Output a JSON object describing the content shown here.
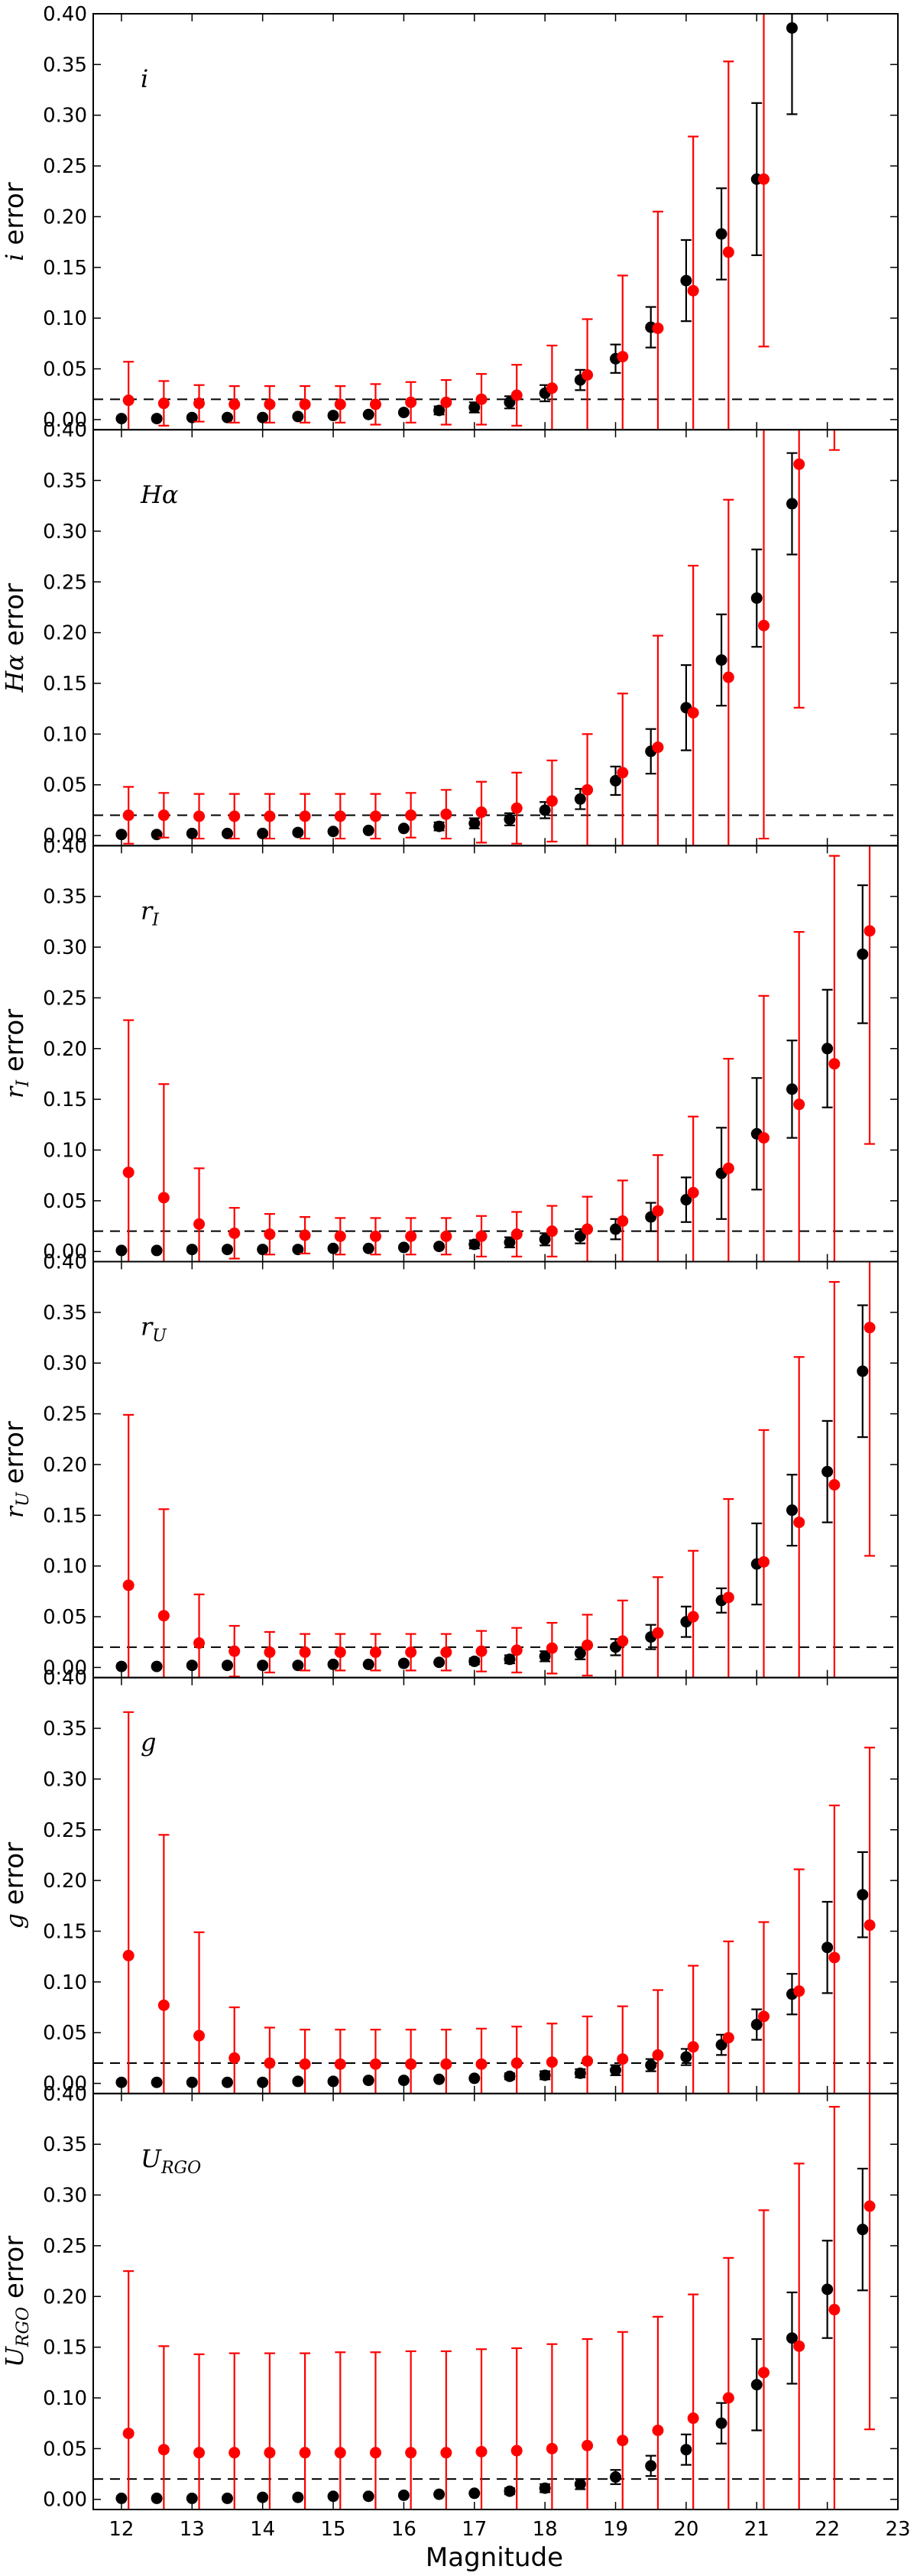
{
  "figure": {
    "xlabel": "Magnitude",
    "x_ticks": [
      12,
      13,
      14,
      15,
      16,
      17,
      18,
      19,
      20,
      21,
      22,
      23
    ],
    "xlim": [
      11.6,
      23.0
    ],
    "ylim": [
      -0.01,
      0.4
    ],
    "y_ticks": [
      "0.00",
      "0.05",
      "0.10",
      "0.15",
      "0.20",
      "0.25",
      "0.30",
      "0.35",
      "0.40"
    ],
    "ylabel_suffix": "error",
    "reference_line": 0.02,
    "colors": {
      "black_series": "#000000",
      "red_series": "#ff0000",
      "reference": "#000000"
    }
  },
  "chart_data": [
    {
      "type": "scatter",
      "band": {
        "main": "i",
        "sub": ""
      },
      "series": [
        {
          "color": "#000000",
          "x": [
            12,
            12.5,
            13,
            13.5,
            14,
            14.5,
            15,
            15.5,
            16,
            16.5,
            17,
            17.5,
            18,
            18.5,
            19,
            19.5,
            20,
            20.5,
            21,
            21.5
          ],
          "y": [
            0.001,
            0.001,
            0.002,
            0.002,
            0.002,
            0.003,
            0.004,
            0.005,
            0.007,
            0.009,
            0.012,
            0.017,
            0.026,
            0.039,
            0.06,
            0.091,
            0.137,
            0.183,
            0.237,
            0.386
          ],
          "err": [
            0,
            0,
            0,
            0,
            0,
            0,
            0,
            0,
            0,
            0.004,
            0.005,
            0.006,
            0.008,
            0.01,
            0.014,
            0.02,
            0.04,
            0.045,
            0.075,
            0.085
          ]
        },
        {
          "color": "#ff0000",
          "x": [
            12.1,
            12.6,
            13.1,
            13.6,
            14.1,
            14.6,
            15.1,
            15.6,
            16.1,
            16.6,
            17.1,
            17.6,
            18.1,
            18.6,
            19.1,
            19.6,
            20.1,
            20.6,
            21.1
          ],
          "y": [
            0.019,
            0.016,
            0.016,
            0.015,
            0.015,
            0.015,
            0.015,
            0.015,
            0.017,
            0.017,
            0.02,
            0.024,
            0.031,
            0.044,
            0.062,
            0.09,
            0.127,
            0.165,
            0.237
          ],
          "err": [
            0.038,
            0.022,
            0.018,
            0.018,
            0.018,
            0.018,
            0.018,
            0.02,
            0.02,
            0.022,
            0.025,
            0.03,
            0.042,
            0.055,
            0.08,
            0.115,
            0.152,
            0.188,
            0.165
          ]
        }
      ]
    },
    {
      "type": "scatter",
      "band": {
        "main": "Hα",
        "sub": ""
      },
      "series": [
        {
          "color": "#000000",
          "x": [
            12,
            12.5,
            13,
            13.5,
            14,
            14.5,
            15,
            15.5,
            16,
            16.5,
            17,
            17.5,
            18,
            18.5,
            19,
            19.5,
            20,
            20.5,
            21,
            21.5
          ],
          "y": [
            0.001,
            0.001,
            0.002,
            0.002,
            0.002,
            0.003,
            0.004,
            0.005,
            0.007,
            0.009,
            0.012,
            0.016,
            0.025,
            0.036,
            0.054,
            0.083,
            0.126,
            0.173,
            0.234,
            0.327
          ],
          "err": [
            0,
            0,
            0,
            0,
            0,
            0,
            0,
            0,
            0,
            0.004,
            0.005,
            0.006,
            0.008,
            0.01,
            0.014,
            0.022,
            0.042,
            0.045,
            0.048,
            0.05
          ]
        },
        {
          "color": "#ff0000",
          "x": [
            12.1,
            12.6,
            13.1,
            13.6,
            14.1,
            14.6,
            15.1,
            15.6,
            16.1,
            16.6,
            17.1,
            17.6,
            18.1,
            18.6,
            19.1,
            19.6,
            20.1,
            20.6,
            21.1,
            21.6,
            22.1
          ],
          "y": [
            0.02,
            0.02,
            0.019,
            0.019,
            0.019,
            0.019,
            0.019,
            0.019,
            0.02,
            0.021,
            0.023,
            0.027,
            0.034,
            0.045,
            0.062,
            0.087,
            0.121,
            0.156,
            0.207,
            0.366,
            0.45
          ],
          "err": [
            0.028,
            0.022,
            0.022,
            0.022,
            0.022,
            0.022,
            0.022,
            0.022,
            0.022,
            0.024,
            0.03,
            0.035,
            0.04,
            0.055,
            0.078,
            0.11,
            0.145,
            0.175,
            0.21,
            0.24,
            0.07
          ]
        }
      ]
    },
    {
      "type": "scatter",
      "band": {
        "main": "r",
        "sub": "I"
      },
      "series": [
        {
          "color": "#000000",
          "x": [
            12,
            12.5,
            13,
            13.5,
            14,
            14.5,
            15,
            15.5,
            16,
            16.5,
            17,
            17.5,
            18,
            18.5,
            19,
            19.5,
            20,
            20.5,
            21,
            21.5,
            22,
            22.5
          ],
          "y": [
            0.001,
            0.001,
            0.002,
            0.002,
            0.002,
            0.002,
            0.003,
            0.003,
            0.004,
            0.005,
            0.007,
            0.009,
            0.012,
            0.015,
            0.022,
            0.034,
            0.051,
            0.077,
            0.116,
            0.16,
            0.2,
            0.293
          ],
          "err": [
            0,
            0,
            0,
            0,
            0,
            0,
            0,
            0,
            0,
            0,
            0.004,
            0.005,
            0.006,
            0.007,
            0.01,
            0.014,
            0.022,
            0.045,
            0.055,
            0.048,
            0.058,
            0.068
          ]
        },
        {
          "color": "#ff0000",
          "x": [
            12.1,
            12.6,
            13.1,
            13.6,
            14.1,
            14.6,
            15.1,
            15.6,
            16.1,
            16.6,
            17.1,
            17.6,
            18.1,
            18.6,
            19.1,
            19.6,
            20.1,
            20.6,
            21.1,
            21.6,
            22.1,
            22.6
          ],
          "y": [
            0.078,
            0.053,
            0.027,
            0.018,
            0.017,
            0.016,
            0.015,
            0.015,
            0.015,
            0.015,
            0.015,
            0.017,
            0.02,
            0.022,
            0.03,
            0.04,
            0.058,
            0.082,
            0.112,
            0.145,
            0.185,
            0.316
          ],
          "err": [
            0.15,
            0.112,
            0.055,
            0.025,
            0.02,
            0.018,
            0.018,
            0.018,
            0.018,
            0.018,
            0.02,
            0.022,
            0.025,
            0.032,
            0.04,
            0.055,
            0.075,
            0.108,
            0.14,
            0.17,
            0.205,
            0.21
          ]
        }
      ]
    },
    {
      "type": "scatter",
      "band": {
        "main": "r",
        "sub": "U"
      },
      "series": [
        {
          "color": "#000000",
          "x": [
            12,
            12.5,
            13,
            13.5,
            14,
            14.5,
            15,
            15.5,
            16,
            16.5,
            17,
            17.5,
            18,
            18.5,
            19,
            19.5,
            20,
            20.5,
            21,
            21.5,
            22,
            22.5
          ],
          "y": [
            0.001,
            0.001,
            0.002,
            0.002,
            0.002,
            0.002,
            0.003,
            0.003,
            0.004,
            0.005,
            0.006,
            0.008,
            0.011,
            0.014,
            0.02,
            0.03,
            0.045,
            0.066,
            0.102,
            0.155,
            0.193,
            0.292
          ],
          "err": [
            0,
            0,
            0,
            0,
            0,
            0,
            0,
            0,
            0,
            0,
            0.003,
            0.004,
            0.005,
            0.006,
            0.008,
            0.012,
            0.015,
            0.012,
            0.04,
            0.035,
            0.05,
            0.065
          ]
        },
        {
          "color": "#ff0000",
          "x": [
            12.1,
            12.6,
            13.1,
            13.6,
            14.1,
            14.6,
            15.1,
            15.6,
            16.1,
            16.6,
            17.1,
            17.6,
            18.1,
            18.6,
            19.1,
            19.6,
            20.1,
            20.6,
            21.1,
            21.6,
            22.1,
            22.6
          ],
          "y": [
            0.081,
            0.051,
            0.024,
            0.016,
            0.015,
            0.015,
            0.015,
            0.015,
            0.015,
            0.015,
            0.016,
            0.017,
            0.019,
            0.022,
            0.026,
            0.034,
            0.05,
            0.069,
            0.104,
            0.143,
            0.18,
            0.335
          ],
          "err": [
            0.168,
            0.105,
            0.048,
            0.025,
            0.02,
            0.018,
            0.018,
            0.018,
            0.018,
            0.018,
            0.02,
            0.022,
            0.025,
            0.03,
            0.04,
            0.055,
            0.065,
            0.097,
            0.13,
            0.163,
            0.2,
            0.225
          ]
        }
      ]
    },
    {
      "type": "scatter",
      "band": {
        "main": "g",
        "sub": ""
      },
      "series": [
        {
          "color": "#000000",
          "x": [
            12,
            12.5,
            13,
            13.5,
            14,
            14.5,
            15,
            15.5,
            16,
            16.5,
            17,
            17.5,
            18,
            18.5,
            19,
            19.5,
            20,
            20.5,
            21,
            21.5,
            22,
            22.5
          ],
          "y": [
            0.001,
            0.001,
            0.001,
            0.001,
            0.001,
            0.002,
            0.002,
            0.003,
            0.003,
            0.004,
            0.005,
            0.007,
            0.008,
            0.01,
            0.013,
            0.018,
            0.026,
            0.038,
            0.058,
            0.088,
            0.134,
            0.186
          ],
          "err": [
            0,
            0,
            0,
            0,
            0,
            0,
            0,
            0,
            0,
            0,
            0,
            0.003,
            0.004,
            0.004,
            0.005,
            0.006,
            0.008,
            0.01,
            0.015,
            0.02,
            0.045,
            0.042
          ]
        },
        {
          "color": "#ff0000",
          "x": [
            12.1,
            12.6,
            13.1,
            13.6,
            14.1,
            14.6,
            15.1,
            15.6,
            16.1,
            16.6,
            17.1,
            17.6,
            18.1,
            18.6,
            19.1,
            19.6,
            20.1,
            20.6,
            21.1,
            21.6,
            22.1,
            22.6
          ],
          "y": [
            0.126,
            0.077,
            0.047,
            0.025,
            0.02,
            0.019,
            0.019,
            0.019,
            0.019,
            0.019,
            0.019,
            0.02,
            0.021,
            0.022,
            0.024,
            0.028,
            0.036,
            0.045,
            0.066,
            0.091,
            0.124,
            0.156
          ],
          "err": [
            0.24,
            0.168,
            0.102,
            0.05,
            0.035,
            0.034,
            0.034,
            0.034,
            0.034,
            0.034,
            0.035,
            0.036,
            0.038,
            0.044,
            0.052,
            0.064,
            0.08,
            0.095,
            0.093,
            0.12,
            0.15,
            0.175
          ]
        }
      ]
    },
    {
      "type": "scatter",
      "band": {
        "main": "U",
        "sub": "RGO"
      },
      "series": [
        {
          "color": "#000000",
          "x": [
            12,
            12.5,
            13,
            13.5,
            14,
            14.5,
            15,
            15.5,
            16,
            16.5,
            17,
            17.5,
            18,
            18.5,
            19,
            19.5,
            20,
            20.5,
            21,
            21.5,
            22,
            22.5
          ],
          "y": [
            0.001,
            0.001,
            0.001,
            0.001,
            0.002,
            0.002,
            0.003,
            0.003,
            0.004,
            0.005,
            0.006,
            0.008,
            0.011,
            0.015,
            0.022,
            0.033,
            0.049,
            0.075,
            0.113,
            0.159,
            0.207,
            0.266
          ],
          "err": [
            0,
            0,
            0,
            0,
            0,
            0,
            0,
            0,
            0,
            0,
            0,
            0.003,
            0.004,
            0.005,
            0.007,
            0.01,
            0.015,
            0.02,
            0.045,
            0.045,
            0.048,
            0.06
          ]
        },
        {
          "color": "#ff0000",
          "x": [
            12.1,
            12.6,
            13.1,
            13.6,
            14.1,
            14.6,
            15.1,
            15.6,
            16.1,
            16.6,
            17.1,
            17.6,
            18.1,
            18.6,
            19.1,
            19.6,
            20.1,
            20.6,
            21.1,
            21.6,
            22.1,
            22.6
          ],
          "y": [
            0.065,
            0.049,
            0.046,
            0.046,
            0.046,
            0.046,
            0.046,
            0.046,
            0.046,
            0.046,
            0.047,
            0.048,
            0.05,
            0.053,
            0.058,
            0.068,
            0.08,
            0.1,
            0.125,
            0.151,
            0.187,
            0.289
          ],
          "err": [
            0.16,
            0.102,
            0.097,
            0.098,
            0.098,
            0.098,
            0.099,
            0.099,
            0.1,
            0.1,
            0.101,
            0.101,
            0.103,
            0.105,
            0.107,
            0.112,
            0.122,
            0.138,
            0.16,
            0.18,
            0.2,
            0.22
          ]
        }
      ]
    }
  ]
}
